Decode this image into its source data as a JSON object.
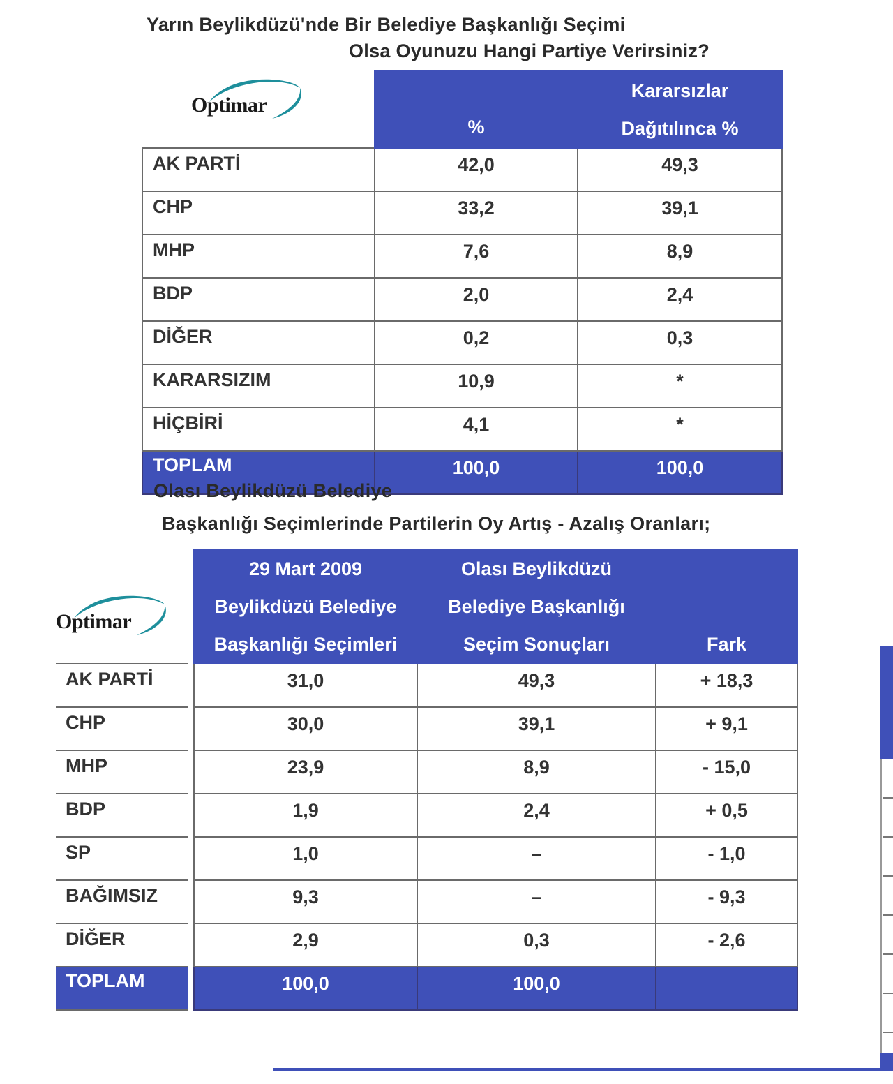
{
  "section1": {
    "title_line1": "Yarın Beylikdüzü'nde Bir Belediye Başkanlığı Seçimi",
    "title_line2": "Olsa Oyunuzu Hangi Partiye   Verirsiniz?",
    "logo_text": "Optimar",
    "headers": {
      "pct": "%",
      "distributed_line1": "Kararsızlar",
      "distributed_line2": "Dağıtılınca %"
    },
    "rows": [
      {
        "party": "AK PARTİ",
        "pct": "42,0",
        "dist": "49,3"
      },
      {
        "party": "CHP",
        "pct": "33,2",
        "dist": "39,1"
      },
      {
        "party": "MHP",
        "pct": "7,6",
        "dist": "8,9"
      },
      {
        "party": "BDP",
        "pct": "2,0",
        "dist": "2,4"
      },
      {
        "party": "DİĞER",
        "pct": "0,2",
        "dist": "0,3"
      },
      {
        "party": "KARARSIZIM",
        "pct": "10,9",
        "dist": "*"
      },
      {
        "party": "HİÇBİRİ",
        "pct": "4,1",
        "dist": "*"
      }
    ],
    "total": {
      "party": "TOPLAM",
      "pct": "100,0",
      "dist": "100,0"
    }
  },
  "section2": {
    "title_line1": "Olası Beylikdüzü Belediye",
    "title_line2": "Başkanlığı Seçimlerinde Partilerin Oy Artış - Azalış Oranları;",
    "logo_text": "Optimar",
    "headers": {
      "col1_line1": "29 Mart 2009",
      "col1_line2": "Beylikdüzü Belediye",
      "col1_line3": "Başkanlığı Seçimleri",
      "col2_line1": "Olası Beylikdüzü",
      "col2_line2": "Belediye Başkanlığı",
      "col2_line3": "Seçim Sonuçları",
      "col3": "Fark"
    },
    "rows": [
      {
        "party": "AK PARTİ",
        "y2009": "31,0",
        "projected": "49,3",
        "diff": "+ 18,3"
      },
      {
        "party": "CHP",
        "y2009": "30,0",
        "projected": "39,1",
        "diff": "+ 9,1"
      },
      {
        "party": "MHP",
        "y2009": "23,9",
        "projected": "8,9",
        "diff": "- 15,0"
      },
      {
        "party": "BDP",
        "y2009": "1,9",
        "projected": "2,4",
        "diff": "+ 0,5"
      },
      {
        "party": "SP",
        "y2009": "1,0",
        "projected": "–",
        "diff": "- 1,0"
      },
      {
        "party": "BAĞIMSIZ",
        "y2009": "9,3",
        "projected": "–",
        "diff": "- 9,3"
      },
      {
        "party": "DİĞER",
        "y2009": "2,9",
        "projected": "0,3",
        "diff": "- 2,6"
      }
    ],
    "total": {
      "party": "TOPLAM",
      "y2009": "100,0",
      "projected": "100,0",
      "diff": ""
    }
  },
  "colors": {
    "header_blue": "#3f50b8",
    "logo_teal": "#1e8f9c"
  }
}
